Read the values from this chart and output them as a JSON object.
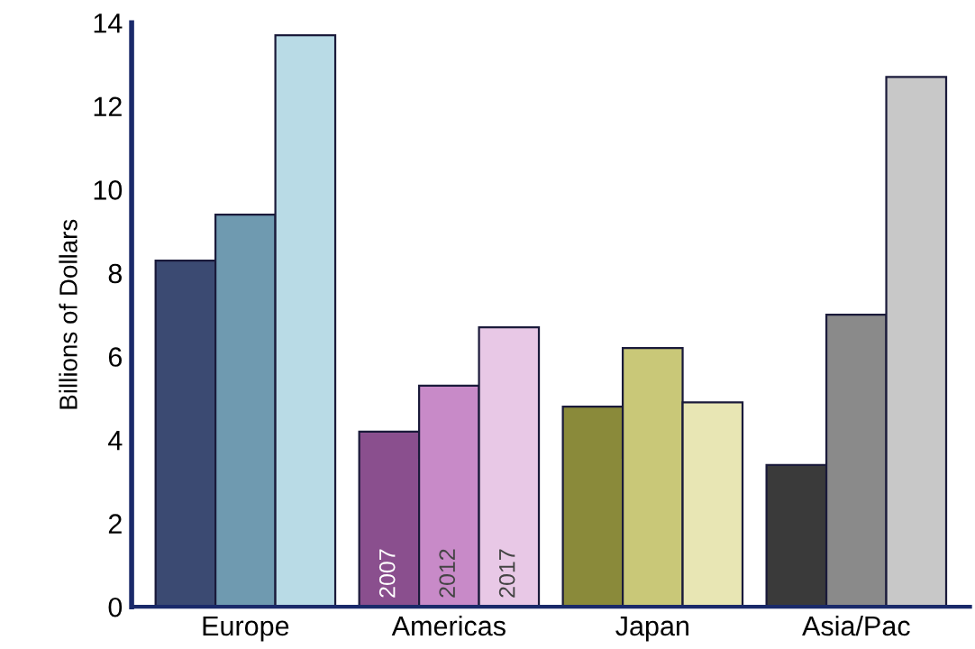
{
  "chart_data": {
    "type": "bar",
    "ylabel": "Billions of Dollars",
    "categories": [
      "Europe",
      "Americas",
      "Japan",
      "Asia/Pac"
    ],
    "series": [
      {
        "colors": [
          "#3b4a72",
          "#8a4f8e",
          "#8a8a3a",
          "#3a3a3a"
        ],
        "values": [
          8.3,
          4.2,
          4.8,
          3.4
        ]
      },
      {
        "colors": [
          "#6f9ab0",
          "#c88ac8",
          "#c9c878",
          "#8a8a8a"
        ],
        "values": [
          9.4,
          5.3,
          6.2,
          7.0
        ]
      },
      {
        "colors": [
          "#b9dbe6",
          "#e8c8e6",
          "#e8e6b4",
          "#c8c8c8"
        ],
        "values": [
          13.7,
          6.7,
          4.9,
          12.7
        ]
      }
    ],
    "ylim": [
      0,
      14
    ],
    "yticks": [
      0,
      2,
      4,
      6,
      8,
      10,
      12,
      14
    ],
    "grid": false,
    "legend": false,
    "annotations": [
      {
        "text": "2007",
        "x": "Americas",
        "y": 0.2
      },
      {
        "text": "2012",
        "x": "Americas",
        "y": 0.2
      },
      {
        "text": "2017",
        "x": "Americas",
        "y": 0.2
      }
    ]
  }
}
